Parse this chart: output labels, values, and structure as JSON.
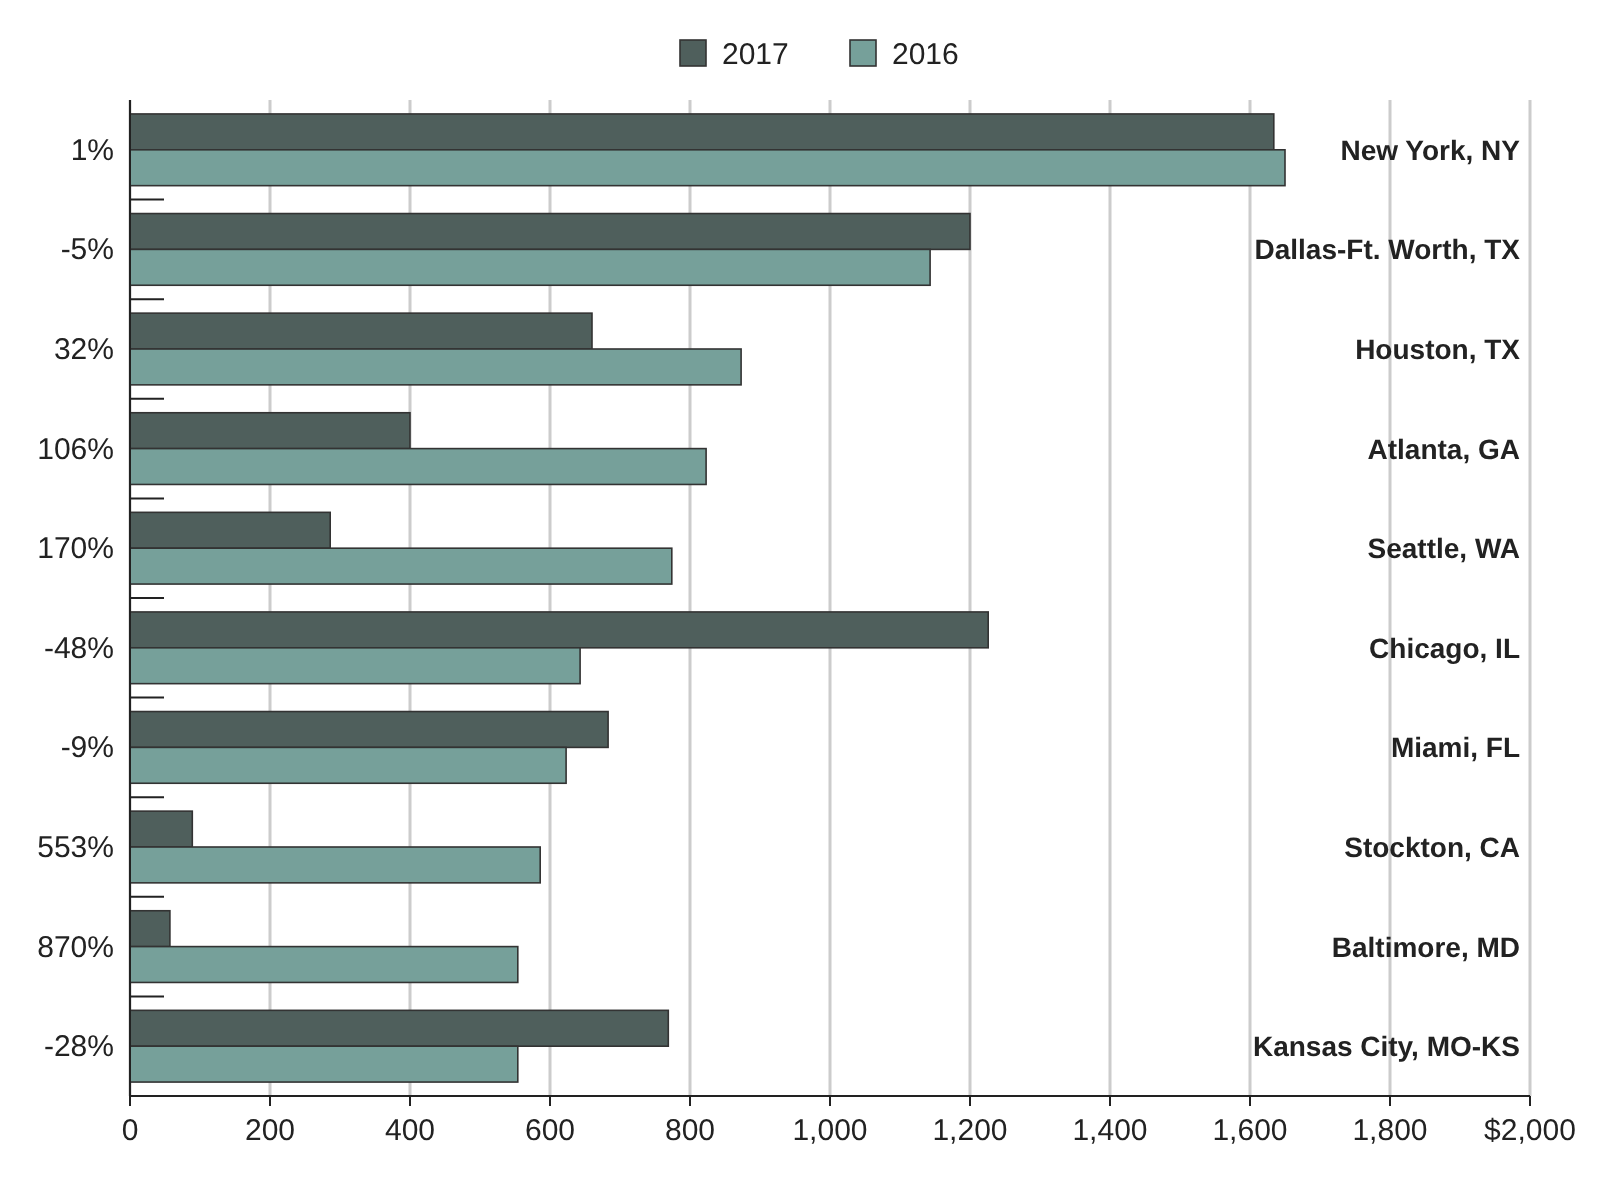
{
  "chart_data": {
    "type": "bar",
    "orientation": "horizontal",
    "categories": [
      "New York, NY",
      "Dallas-Ft. Worth, TX",
      "Houston, TX",
      "Atlanta, GA",
      "Seattle, WA",
      "Chicago, IL",
      "Miami, FL",
      "Stockton, CA",
      "Baltimore, MD",
      "Kansas City, MO-KS"
    ],
    "series": [
      {
        "name": "2017",
        "color": "#4f5f5c",
        "values": [
          1634,
          1200,
          660,
          400,
          286,
          1226,
          683,
          89,
          57,
          769
        ]
      },
      {
        "name": "2016",
        "color": "#76a09a",
        "values": [
          1650,
          1143,
          873,
          823,
          774,
          643,
          623,
          586,
          554,
          554
        ]
      }
    ],
    "xlim": [
      0,
      2000
    ],
    "xticks": [
      0,
      200,
      400,
      600,
      800,
      {
        "value": 1000,
        "label": "1,000"
      },
      {
        "value": 1200,
        "label": "1,200"
      },
      {
        "value": 1400,
        "label": "1,400"
      },
      {
        "value": 1600,
        "label": "1,600"
      },
      {
        "value": 1800,
        "label": "1,800"
      },
      {
        "value": 2000,
        "label": "$2,000"
      }
    ],
    "grid": "x",
    "legend": "top",
    "annotations": [
      "1%",
      "-5%",
      "32%",
      "106%",
      "170%",
      "-48%",
      "-9%",
      "553%",
      "870%",
      "-28%"
    ]
  }
}
